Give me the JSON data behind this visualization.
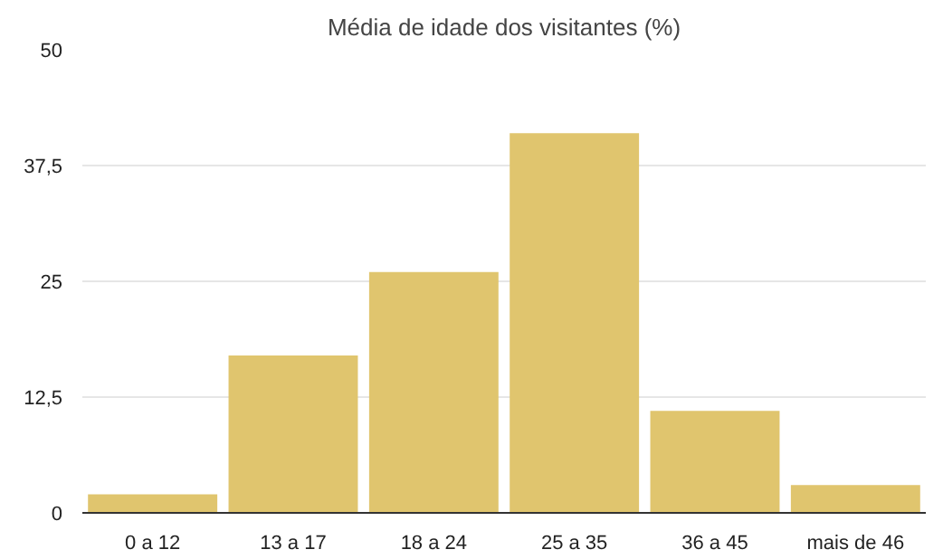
{
  "chart_data": {
    "type": "bar",
    "title": "Média de idade dos visitantes (%)",
    "categories": [
      "0 a 12",
      "13 a 17",
      "18 a 24",
      "25 a 35",
      "36 a 45",
      "mais de 46"
    ],
    "values": [
      2,
      17,
      26,
      41,
      11,
      3
    ],
    "color": "#e0c56e",
    "ylim": [
      0,
      50
    ],
    "yticks": [
      0,
      {
        "value": 12.5,
        "label": "12,5"
      },
      25,
      {
        "value": 37.5,
        "label": "37,5"
      },
      50
    ],
    "grid": "y"
  }
}
